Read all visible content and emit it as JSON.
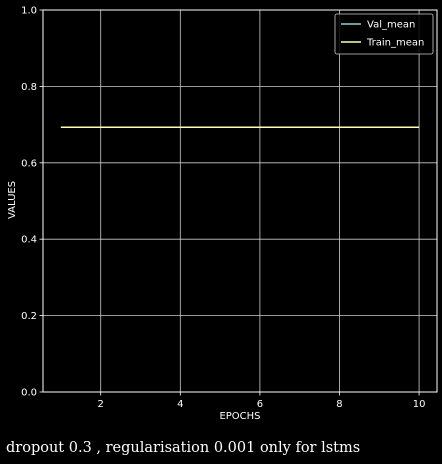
{
  "chart_data": {
    "type": "line",
    "xlabel": "EPOCHS",
    "ylabel": "VALUES",
    "xlim": [
      0.55,
      10.45
    ],
    "ylim": [
      0,
      1
    ],
    "xticks": [
      2,
      4,
      6,
      8,
      10
    ],
    "yticks": [
      0.0,
      0.2,
      0.4,
      0.6,
      0.8,
      1.0
    ],
    "ytick_labels": [
      "0.0",
      "0.2",
      "0.4",
      "0.6",
      "0.8",
      "1.0"
    ],
    "grid": true,
    "legend_position": "top-right",
    "x": [
      1,
      2,
      3,
      4,
      5,
      6,
      7,
      8,
      9,
      10
    ],
    "series": [
      {
        "name": "Val_mean",
        "color": "#8dd3c7",
        "values": [
          0.693,
          0.693,
          0.693,
          0.693,
          0.693,
          0.693,
          0.693,
          0.693,
          0.693,
          0.693
        ]
      },
      {
        "name": "Train_mean",
        "color": "#feffb3",
        "values": [
          0.693,
          0.693,
          0.693,
          0.693,
          0.693,
          0.693,
          0.693,
          0.693,
          0.693,
          0.693
        ]
      }
    ]
  },
  "caption": "dropout 0.3 , regularisation 0.001 only for lstms"
}
